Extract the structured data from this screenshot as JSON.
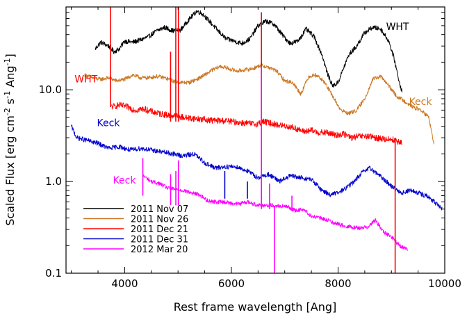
{
  "chart_data": {
    "type": "line",
    "title": "",
    "xlabel": "Rest frame wavelength [Ang]",
    "ylabel_parts": [
      "Scaled Flux [erg cm",
      "-2",
      " s",
      "-1",
      " Ang",
      "-1",
      "]"
    ],
    "xlim": [
      2900,
      10000
    ],
    "ylim": [
      0.1,
      80
    ],
    "yscale": "log",
    "x_ticks": [
      4000,
      6000,
      8000,
      10000
    ],
    "x_tick_labels": [
      "4000",
      "6000",
      "8000",
      "10000"
    ],
    "y_ticks": [
      0.1,
      1.0,
      10.0
    ],
    "y_tick_labels": [
      "0.1",
      "1.0",
      "10.0"
    ],
    "legend_position": "bottom-left",
    "series": [
      {
        "name": "2011 Nov 07",
        "color": "#000000",
        "annotation": "WHT",
        "noise": 0.06,
        "x": [
          3450,
          3550,
          3700,
          3800,
          3900,
          4000,
          4150,
          4300,
          4450,
          4600,
          4750,
          4900,
          5050,
          5200,
          5350,
          5450,
          5600,
          5750,
          5900,
          6050,
          6200,
          6350,
          6500,
          6650,
          6800,
          6950,
          7100,
          7250,
          7400,
          7550,
          7700,
          7800,
          7900,
          8000,
          8100,
          8200,
          8350,
          8500,
          8650,
          8800,
          8950,
          9050,
          9150,
          9200
        ],
        "y": [
          28,
          33,
          30,
          26,
          28,
          34,
          33,
          35,
          38,
          44,
          48,
          44,
          45,
          58,
          72,
          68,
          55,
          44,
          36,
          34,
          32,
          36,
          50,
          56,
          52,
          40,
          32,
          34,
          46,
          38,
          24,
          15,
          11,
          12,
          17,
          24,
          30,
          42,
          48,
          46,
          34,
          22,
          12,
          9.5
        ]
      },
      {
        "name": "2011 Nov 26",
        "color": "#cc7722",
        "annotation": "Keck",
        "noise": 0.05,
        "x": [
          3250,
          3400,
          3550,
          3700,
          3850,
          4000,
          4150,
          4300,
          4450,
          4600,
          4750,
          4900,
          5050,
          5200,
          5350,
          5500,
          5650,
          5800,
          5950,
          6100,
          6250,
          6400,
          6550,
          6700,
          6850,
          7000,
          7150,
          7300,
          7450,
          7600,
          7750,
          7900,
          8050,
          8200,
          8350,
          8500,
          8650,
          8800,
          8950,
          9100,
          9250,
          9400,
          9550,
          9700,
          9800
        ],
        "y": [
          14.5,
          13.5,
          13,
          13.5,
          12.5,
          13,
          14.5,
          13.5,
          13.5,
          14,
          13.5,
          12.5,
          12,
          12,
          13,
          14.5,
          16.5,
          18,
          17,
          16,
          16.5,
          17,
          18.5,
          17.5,
          16,
          12.5,
          12,
          9,
          14,
          14.5,
          12,
          8.5,
          6,
          5.5,
          6,
          8,
          13,
          14,
          11,
          8.5,
          7.5,
          6.5,
          6,
          5,
          2.5
        ]
      },
      {
        "name": "2011 Dec 21",
        "color": "#ff0000",
        "annotation": "WHT",
        "noise": 0.08,
        "x": [
          3750,
          3900,
          4050,
          4200,
          4350,
          4500,
          4650,
          4800,
          4950,
          5100,
          5250,
          5400,
          5550,
          5700,
          5850,
          6000,
          6150,
          6300,
          6450,
          6600,
          6750,
          6900,
          7050,
          7200,
          7350,
          7500,
          7650,
          7800,
          7950,
          8100,
          8250,
          8400,
          8550,
          8700,
          8850,
          9000,
          9200
        ],
        "y": [
          6.5,
          6.8,
          6.5,
          6,
          6.2,
          5.8,
          5.5,
          5.3,
          5.2,
          5,
          4.9,
          4.8,
          4.7,
          4.6,
          4.6,
          4.5,
          4.4,
          4.3,
          4.2,
          4.5,
          4.3,
          4.1,
          4,
          3.8,
          3.5,
          3.6,
          3.4,
          3.4,
          3.2,
          3.3,
          3,
          3.1,
          3.1,
          3,
          2.9,
          2.9,
          2.6
        ]
      },
      {
        "name": "2011 Dec 31",
        "color": "#0000cc",
        "annotation": "Keck",
        "noise": 0.06,
        "x": [
          3000,
          3100,
          3300,
          3500,
          3700,
          3900,
          4100,
          4300,
          4500,
          4700,
          4900,
          5100,
          5300,
          5500,
          5700,
          5900,
          6100,
          6300,
          6500,
          6700,
          6900,
          7100,
          7300,
          7500,
          7700,
          7850,
          8000,
          8150,
          8300,
          8450,
          8600,
          8750,
          8900,
          9050,
          9200,
          9350,
          9500,
          9650,
          9800,
          9950
        ],
        "y": [
          4,
          3,
          2.8,
          2.6,
          2.3,
          2.4,
          2.2,
          2.3,
          2.2,
          2.1,
          2,
          1.9,
          2,
          1.6,
          1.4,
          1.45,
          1.45,
          1.3,
          1.1,
          1.2,
          1,
          1.15,
          1.1,
          1.05,
          0.8,
          0.72,
          0.75,
          0.85,
          1,
          1.25,
          1.4,
          1.2,
          1,
          0.85,
          0.75,
          0.8,
          0.75,
          0.7,
          0.6,
          0.5
        ]
      },
      {
        "name": "2012 Mar 20",
        "color": "#ff00ff",
        "annotation": "Keck",
        "noise": 0.05,
        "x": [
          4350,
          4500,
          4650,
          4800,
          4950,
          5100,
          5250,
          5400,
          5550,
          5700,
          5850,
          6000,
          6150,
          6300,
          6450,
          6600,
          6750,
          6900,
          7050,
          7200,
          7350,
          7500,
          7650,
          7800,
          7950,
          8100,
          8250,
          8400,
          8550,
          8700,
          8850,
          9000,
          9150,
          9300
        ],
        "y": [
          1.15,
          1,
          0.95,
          0.85,
          0.82,
          0.8,
          0.75,
          0.72,
          0.62,
          0.6,
          0.6,
          0.58,
          0.57,
          0.6,
          0.56,
          0.55,
          0.55,
          0.54,
          0.53,
          0.48,
          0.5,
          0.42,
          0.4,
          0.38,
          0.35,
          0.33,
          0.32,
          0.31,
          0.32,
          0.38,
          0.28,
          0.25,
          0.2,
          0.18
        ]
      }
    ],
    "spikes": [
      {
        "series": 2,
        "x": 3735,
        "y_top": 80,
        "y_bottom": 6.5
      },
      {
        "series": 2,
        "x": 4860,
        "y_top": 26,
        "y_bottom": 4.5
      },
      {
        "series": 2,
        "x": 4958,
        "y_top": 80,
        "y_bottom": 4.5
      },
      {
        "series": 2,
        "x": 5007,
        "y_top": 80,
        "y_bottom": 4.5
      },
      {
        "series": 2,
        "x": 6563,
        "y_top": 70,
        "y_bottom": 4.0
      },
      {
        "series": 2,
        "x": 9070,
        "y_top": 3.0,
        "y_bottom": 0.1
      },
      {
        "series": 4,
        "x": 4340,
        "y_top": 1.8,
        "y_bottom": 0.7
      },
      {
        "series": 4,
        "x": 4861,
        "y_top": 1.2,
        "y_bottom": 0.55
      },
      {
        "series": 4,
        "x": 4959,
        "y_top": 1.3,
        "y_bottom": 0.55
      },
      {
        "series": 4,
        "x": 5007,
        "y_top": 1.7,
        "y_bottom": 0.55
      },
      {
        "series": 4,
        "x": 6563,
        "y_top": 18,
        "y_bottom": 0.5
      },
      {
        "series": 4,
        "x": 6716,
        "y_top": 0.95,
        "y_bottom": 0.5
      },
      {
        "series": 4,
        "x": 6810,
        "y_top": 0.52,
        "y_bottom": 0.1
      },
      {
        "series": 4,
        "x": 7135,
        "y_top": 0.7,
        "y_bottom": 0.5
      },
      {
        "series": 3,
        "x": 5876,
        "y_top": 1.3,
        "y_bottom": 0.65
      },
      {
        "series": 3,
        "x": 6300,
        "y_top": 1.0,
        "y_bottom": 0.65
      }
    ],
    "annotation_labels": [
      {
        "text": "WHT",
        "series": 0,
        "x": 8900,
        "y": 45
      },
      {
        "text": "WHT",
        "series": 2,
        "x": 3060,
        "y": 12
      },
      {
        "text": "Keck",
        "series": 1,
        "x": 9330,
        "y": 6.8
      },
      {
        "text": "Keck",
        "series": 3,
        "x": 3480,
        "y": 4.0
      },
      {
        "text": "Keck",
        "series": 4,
        "x": 3780,
        "y": 0.95
      }
    ]
  }
}
